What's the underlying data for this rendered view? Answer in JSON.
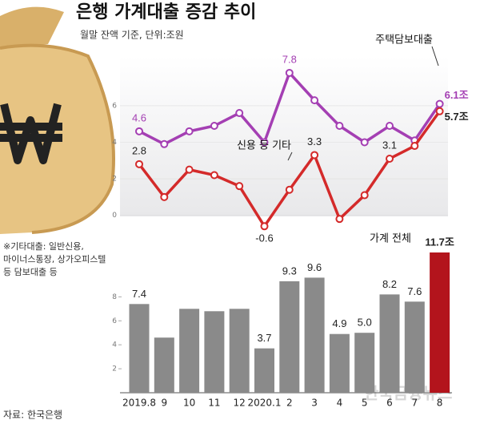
{
  "title": "은행 가계대출 증감 추이",
  "subtitle": "월말 잔액 기준, 단위:조원",
  "note": [
    "※기타대출: 일반신용,",
    "마이너스통장, 상가오피스텔",
    "등 담보대출 등"
  ],
  "source": "자료: 한국은행",
  "watermark": "한국금융뉴스",
  "chart_data": [
    {
      "type": "line",
      "categories": [
        "2019.8",
        "9",
        "10",
        "11",
        "12",
        "2020.1",
        "2",
        "3",
        "4",
        "5",
        "6",
        "7",
        "8"
      ],
      "series": [
        {
          "name": "주택담보대출",
          "color": "#a43fb3",
          "values": [
            4.6,
            3.9,
            4.6,
            4.9,
            5.6,
            4.0,
            7.8,
            6.3,
            4.9,
            4.0,
            4.9,
            4.1,
            6.1
          ],
          "value_labels": [
            "4.6",
            null,
            null,
            null,
            null,
            null,
            "7.8",
            null,
            null,
            null,
            null,
            null,
            "6.1조"
          ]
        },
        {
          "name": "신용 등 기타",
          "color": "#d42a2a",
          "values": [
            2.8,
            1.0,
            2.5,
            2.2,
            1.6,
            -0.6,
            1.4,
            3.3,
            -0.2,
            1.1,
            3.1,
            3.8,
            5.7
          ],
          "value_labels": [
            "2.8",
            null,
            null,
            null,
            null,
            "-0.6",
            null,
            "3.3",
            null,
            null,
            "3.1",
            null,
            "5.7조"
          ]
        }
      ],
      "ylim": [
        -0.5,
        8.5
      ],
      "yticks": [
        0,
        2,
        4,
        6
      ]
    },
    {
      "type": "bar",
      "categories": [
        "2019.8",
        "9",
        "10",
        "11",
        "12",
        "2020.1",
        "2",
        "3",
        "4",
        "5",
        "6",
        "7",
        "8"
      ],
      "series": [
        {
          "name": "가계 전체",
          "color": "#8a8a8a",
          "highlight_color": "#b3141c",
          "values": [
            7.4,
            4.6,
            7.0,
            6.8,
            7.0,
            3.7,
            9.3,
            9.6,
            4.9,
            5.0,
            8.2,
            7.6,
            11.7
          ],
          "value_labels": [
            "7.4",
            null,
            null,
            null,
            null,
            "3.7",
            "9.3",
            "9.6",
            "4.9",
            "5.0",
            "8.2",
            "7.6",
            "11.7조"
          ]
        }
      ],
      "ylim": [
        0,
        11.7
      ],
      "yticks": [
        2,
        4,
        6,
        8
      ]
    }
  ]
}
